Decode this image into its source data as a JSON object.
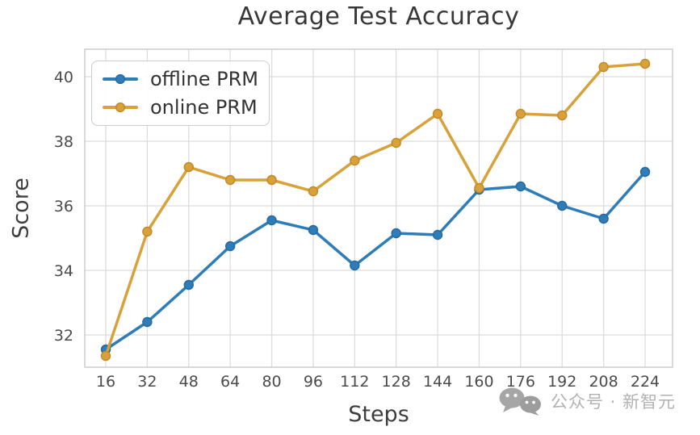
{
  "watermark": {
    "icon": "wechat-icon",
    "text": "公众号 · 新智元"
  },
  "chart_data": {
    "type": "line",
    "title": "Average Test Accuracy",
    "xlabel": "Steps",
    "ylabel": "Score",
    "grid": true,
    "legend_position": "upper left",
    "categories": [
      16,
      32,
      48,
      64,
      80,
      96,
      112,
      128,
      144,
      160,
      176,
      192,
      208,
      224
    ],
    "yticks": [
      32,
      34,
      36,
      38,
      40
    ],
    "ylim": [
      31.0,
      40.85
    ],
    "colors": {
      "grid": "#dcdcdc",
      "plot_border": "#cccccc",
      "tick_label": "#4b4b4b"
    },
    "series": [
      {
        "name": "offline PRM",
        "color": "#2e7cb8",
        "marker_edge": "#266a9e",
        "values": [
          31.55,
          32.4,
          33.55,
          34.75,
          35.55,
          35.25,
          34.15,
          35.15,
          35.1,
          36.5,
          36.6,
          36.0,
          35.6,
          37.05
        ]
      },
      {
        "name": "online PRM",
        "color": "#d8a13a",
        "marker_edge": "#c08a28",
        "values": [
          31.35,
          35.2,
          37.2,
          36.8,
          36.8,
          36.45,
          37.4,
          37.95,
          38.85,
          36.55,
          38.85,
          38.8,
          40.3,
          40.4
        ]
      }
    ]
  }
}
